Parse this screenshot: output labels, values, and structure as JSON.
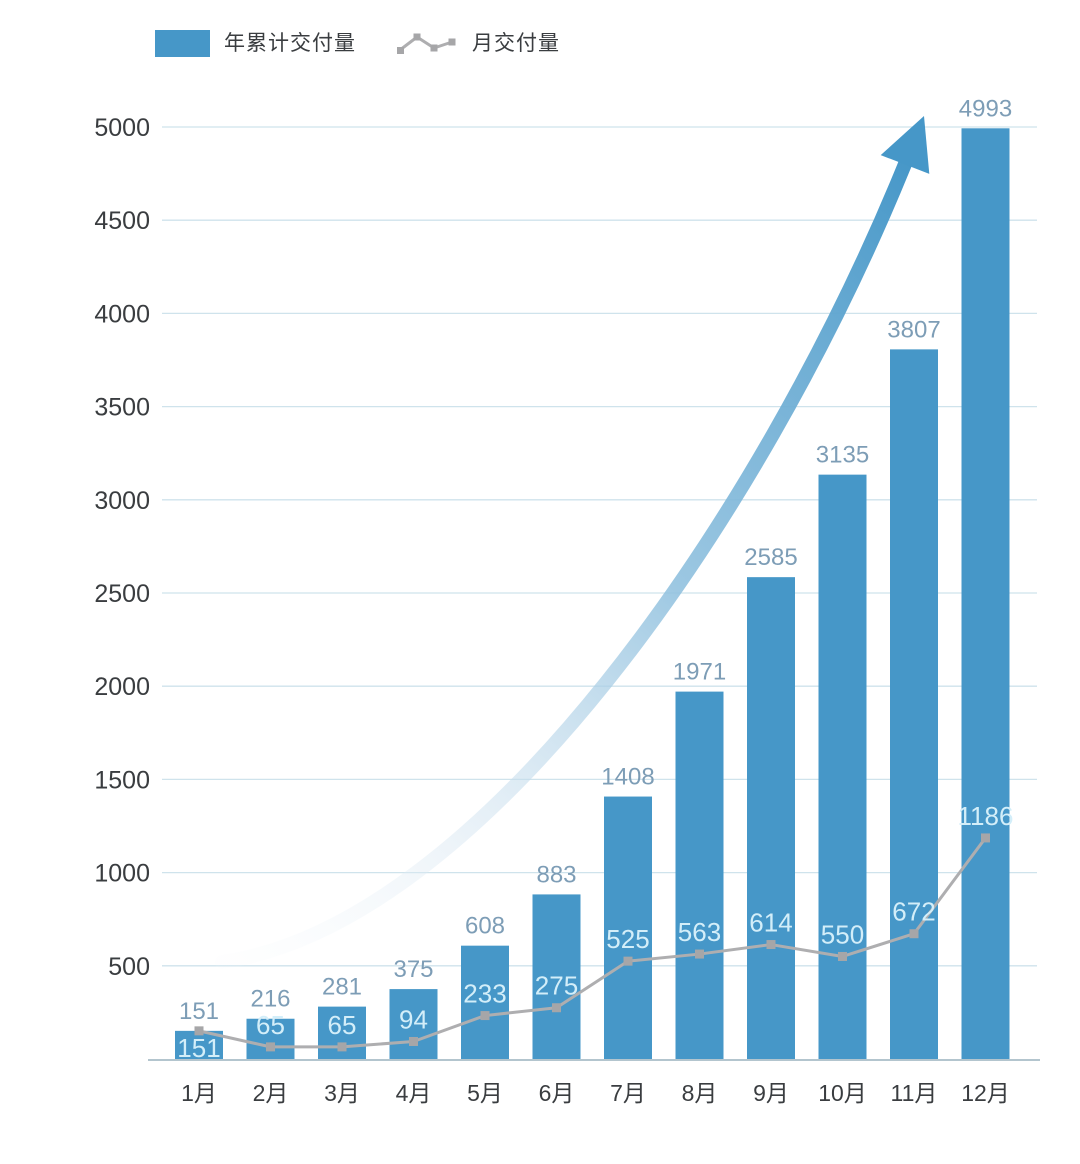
{
  "legend": {
    "bar_label": "年累计交付量",
    "line_label": "月交付量"
  },
  "colors": {
    "bar": "#4697c8",
    "bar_value_label": "#7d9db6",
    "line": "#aeaeb0",
    "marker": "#a6a6a8",
    "line_value_label": "#d3eef9",
    "grid": "#cfe3ec",
    "axis": "#b3c5ce",
    "tick_text": "#3a3d40",
    "arrow": "#4697c8",
    "arrow_tail": "#f2f7fb"
  },
  "chart_data": {
    "type": "bar",
    "title": "",
    "xlabel": "",
    "ylabel": "",
    "categories": [
      "1月",
      "2月",
      "3月",
      "4月",
      "5月",
      "6月",
      "7月",
      "8月",
      "9月",
      "10月",
      "11月",
      "12月"
    ],
    "series": [
      {
        "name": "年累计交付量",
        "type": "bar",
        "values": [
          151,
          216,
          281,
          375,
          608,
          883,
          1408,
          1971,
          2585,
          3135,
          3807,
          4993
        ]
      },
      {
        "name": "月交付量",
        "type": "line",
        "values": [
          151,
          65,
          65,
          94,
          233,
          275,
          525,
          563,
          614,
          550,
          672,
          1186
        ]
      }
    ],
    "ylim": [
      0,
      5000
    ],
    "yticks": [
      500,
      1000,
      1500,
      2000,
      2500,
      3000,
      3500,
      4000,
      4500,
      5000
    ],
    "grid": true,
    "legend_position": "top-left",
    "annotations": [
      "growth-trend-arrow"
    ]
  }
}
